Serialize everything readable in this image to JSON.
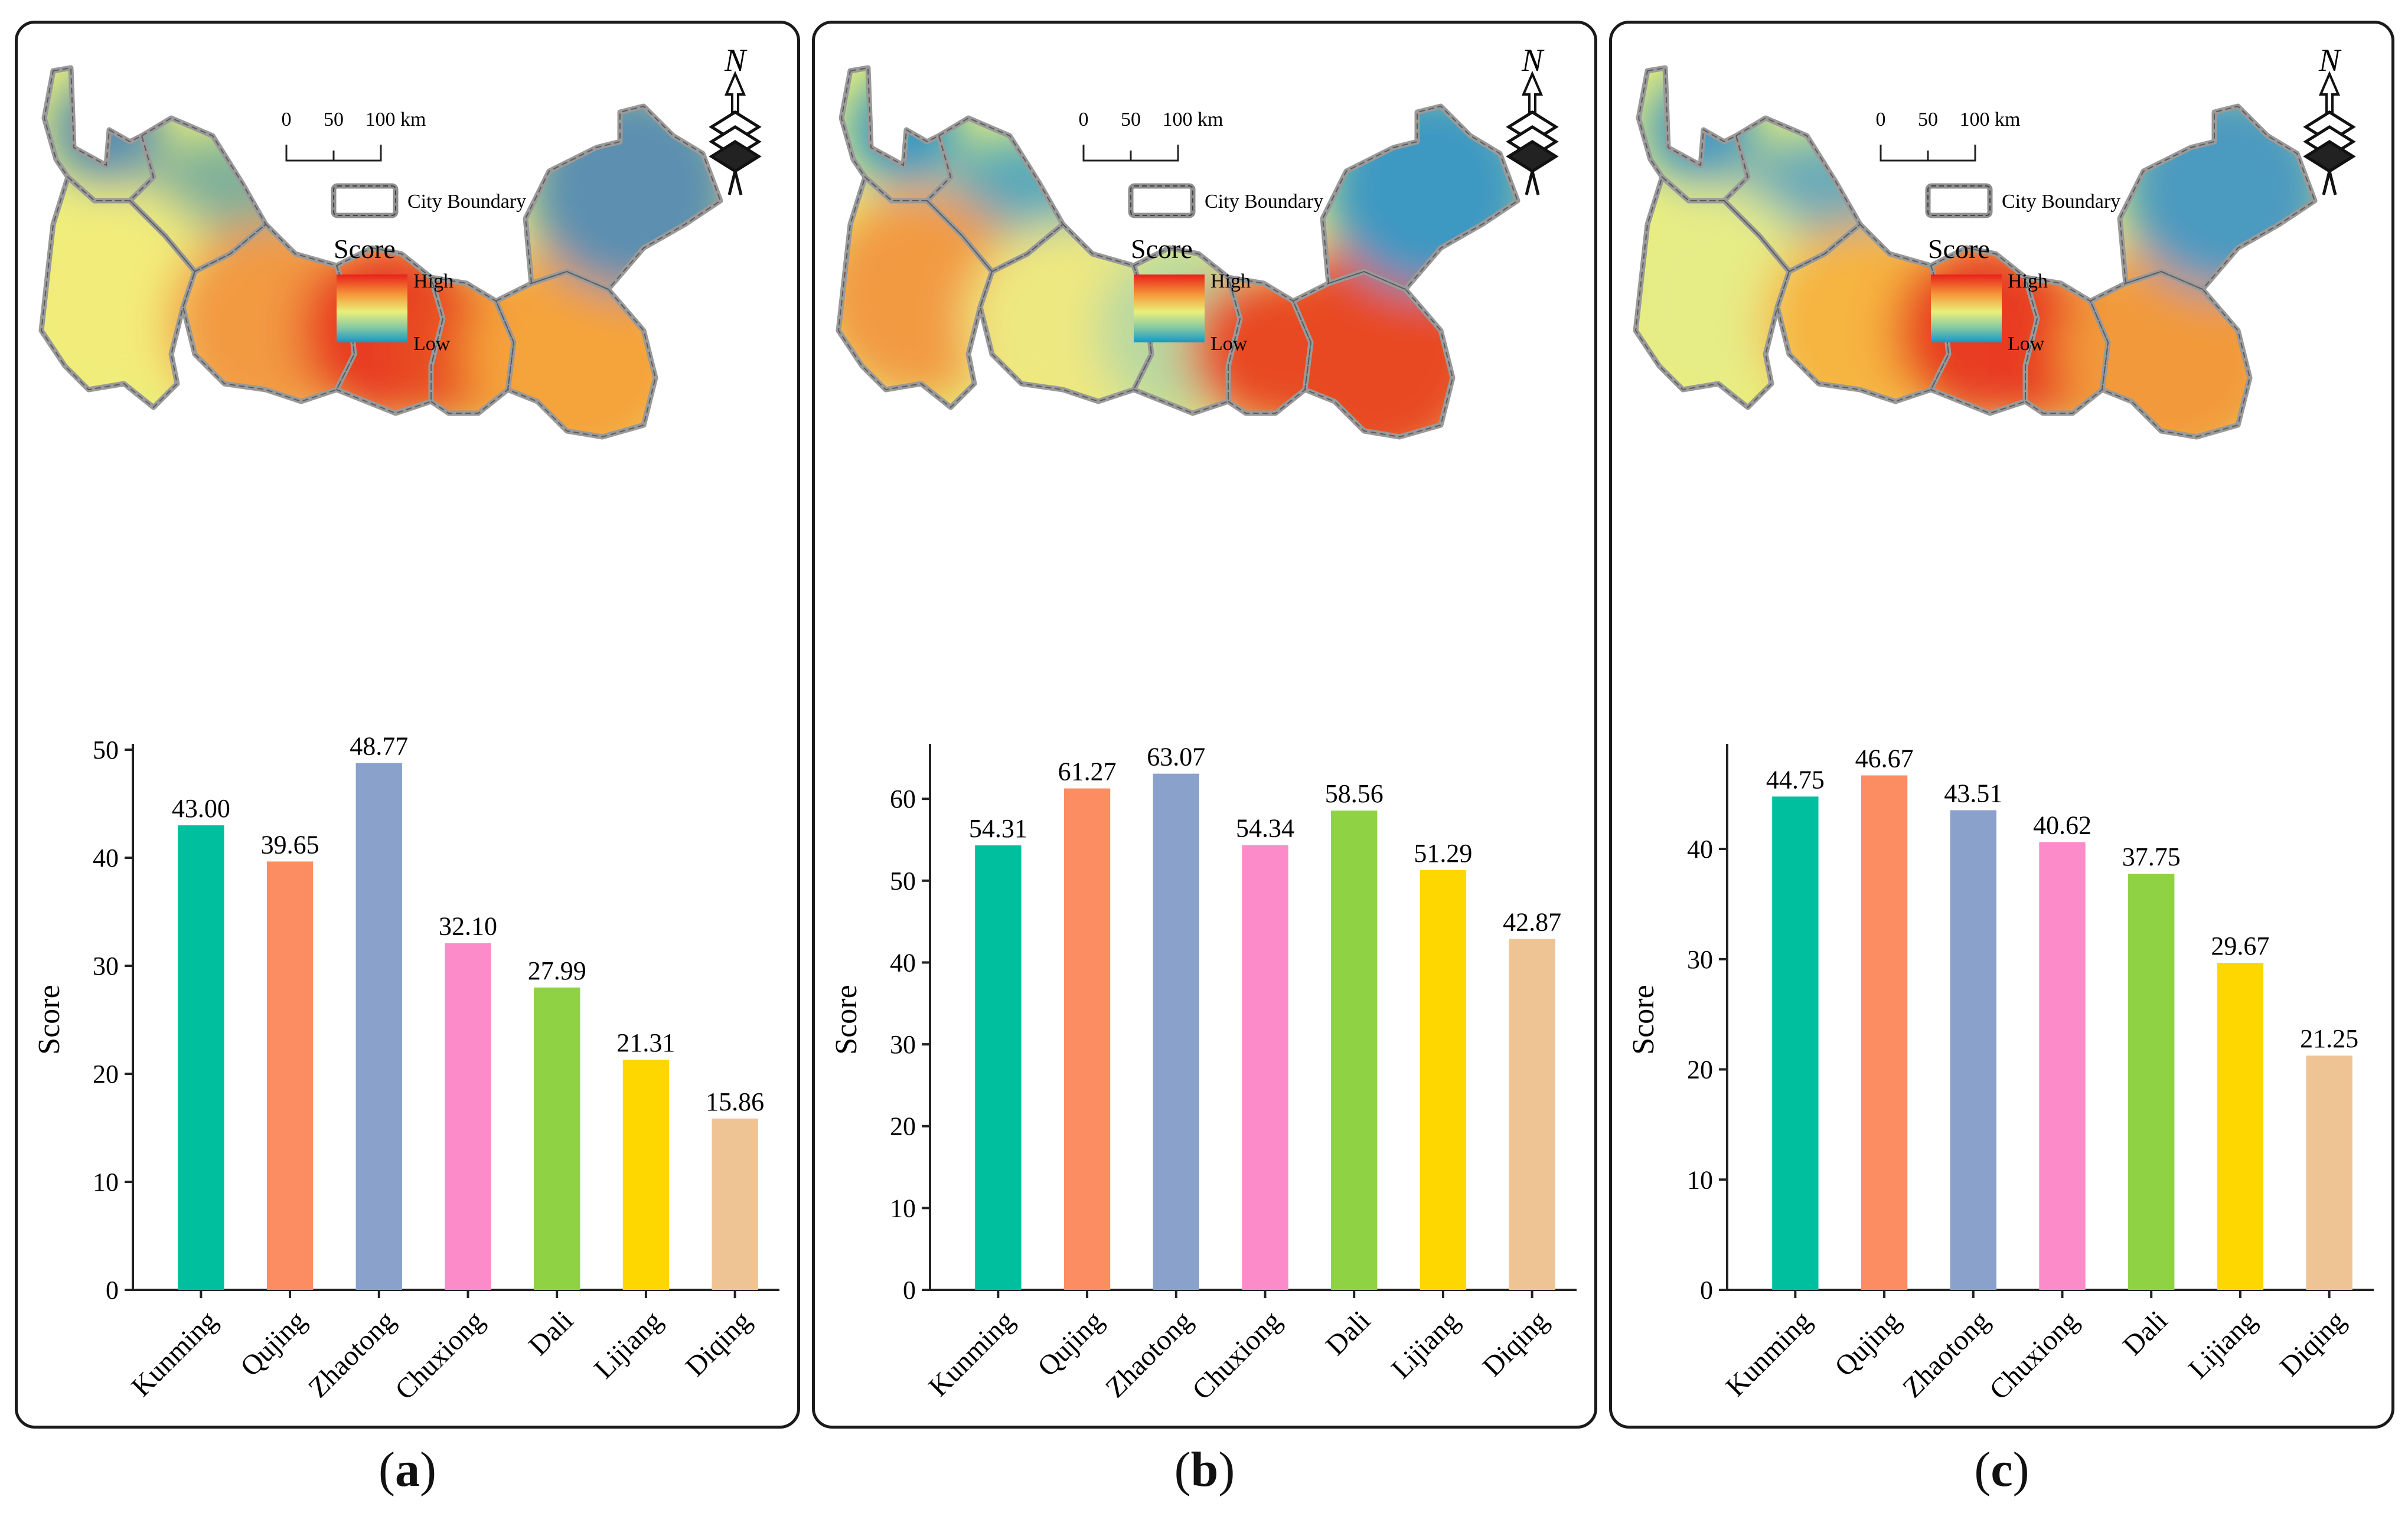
{
  "legend": {
    "scale_label": "100 km",
    "scale_ticks": [
      "0",
      "50"
    ],
    "boundary_label": "City Boundary",
    "score_title": "Score",
    "high_label": "High",
    "low_label": "Low",
    "north_label": "N"
  },
  "colors": {
    "ramp_high": "#e8201b",
    "ramp_mid_high": "#f59a3a",
    "ramp_mid": "#eaf07a",
    "ramp_mid_low": "#7ec6a6",
    "ramp_low": "#1596c9",
    "boundary": "#9a9a9a"
  },
  "panels": [
    {
      "caption": "a",
      "palette": [
        "#5b8fb0",
        "#7fb09a",
        "#f2ec7a",
        "#f29a42",
        "#e83a20",
        "#e84d22",
        "#f5a33a"
      ],
      "chart_data": {
        "type": "bar",
        "title": "",
        "xlabel": "",
        "ylabel": "Score",
        "categories": [
          "Kunming",
          "Qujing",
          "Zhaotong",
          "Chuxiong",
          "Dali",
          "Lijiang",
          "Diqing"
        ],
        "values": [
          43.0,
          39.65,
          48.77,
          32.1,
          27.99,
          21.31,
          15.86
        ],
        "labels": [
          "43.00",
          "39.65",
          "48.77",
          "32.10",
          "27.99",
          "21.31",
          "15.86"
        ],
        "ylim": [
          0,
          50
        ],
        "yticks": [
          0,
          10,
          20,
          30,
          40,
          50
        ],
        "bar_colors": [
          "#00bf9f",
          "#fc8d62",
          "#8aa1cb",
          "#fc8cc9",
          "#8fd344",
          "#ffd700",
          "#efc494"
        ]
      }
    },
    {
      "caption": "b",
      "palette": [
        "#3e98c2",
        "#5aa9b9",
        "#f29a42",
        "#eee880",
        "#b8d8a0",
        "#e84a22",
        "#e84a22"
      ],
      "chart_data": {
        "type": "bar",
        "title": "",
        "xlabel": "",
        "ylabel": "Score",
        "categories": [
          "Kunming",
          "Qujing",
          "Zhaotong",
          "Chuxiong",
          "Dali",
          "Lijiang",
          "Diqing"
        ],
        "values": [
          54.31,
          61.27,
          63.07,
          54.34,
          58.56,
          51.29,
          42.87
        ],
        "labels": [
          "54.31",
          "61.27",
          "63.07",
          "54.34",
          "58.56",
          "51.29",
          "42.87"
        ],
        "ylim": [
          0,
          66
        ],
        "yticks": [
          0,
          10,
          20,
          30,
          40,
          50,
          60
        ],
        "bar_colors": [
          "#00bf9f",
          "#fc8d62",
          "#8aa1cb",
          "#fc8cc9",
          "#8fd344",
          "#ffd700",
          "#efc494"
        ]
      }
    },
    {
      "caption": "c",
      "palette": [
        "#4b9ac0",
        "#6aaab8",
        "#e6ec86",
        "#f6b440",
        "#e83e22",
        "#e83a20",
        "#f29a3a"
      ],
      "chart_data": {
        "type": "bar",
        "title": "",
        "xlabel": "",
        "ylabel": "Score",
        "categories": [
          "Kunming",
          "Qujing",
          "Zhaotong",
          "Chuxiong",
          "Dali",
          "Lijiang",
          "Diqing"
        ],
        "values": [
          44.75,
          46.67,
          43.51,
          40.62,
          37.75,
          29.67,
          21.25
        ],
        "labels": [
          "44.75",
          "46.67",
          "43.51",
          "40.62",
          "37.75",
          "29.67",
          "21.25"
        ],
        "ylim": [
          0,
          49
        ],
        "yticks": [
          0,
          10,
          20,
          30,
          40
        ],
        "bar_colors": [
          "#00bf9f",
          "#fc8d62",
          "#8aa1cb",
          "#fc8cc9",
          "#8fd344",
          "#ffd700",
          "#efc494"
        ]
      }
    }
  ]
}
